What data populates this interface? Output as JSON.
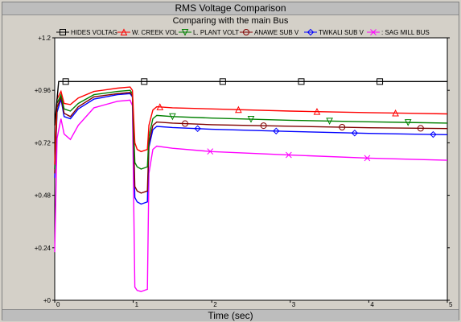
{
  "chart_data": {
    "type": "line",
    "title": "RMS Voltage Comparison",
    "subtitle": "Comparing with the main Bus",
    "xlabel": "Time (sec)",
    "ylabel": "",
    "xlim": [
      0,
      5
    ],
    "ylim": [
      0,
      1.2
    ],
    "x_ticks": [
      0,
      1,
      2,
      3,
      4,
      5
    ],
    "x_tick_labels": [
      "0",
      "1",
      "2",
      "3",
      "4",
      "5"
    ],
    "y_ticks": [
      0,
      0.24,
      0.48,
      0.72,
      0.96,
      1.2
    ],
    "y_tick_labels": [
      "+0",
      "+0.24",
      "+0.48",
      "+0.72",
      "+0.96",
      "+1.2"
    ],
    "grid": false,
    "legend_position": "top",
    "series": [
      {
        "name": "HIDES VOLTAG",
        "color": "#000000",
        "marker": "square",
        "x": [
          0,
          0.05,
          0.1,
          1.0,
          1.2,
          5.0
        ],
        "y": [
          0.8,
          1.0,
          1.0,
          1.0,
          1.0,
          1.0
        ],
        "marker_x": [
          0.14,
          1.14,
          2.14,
          3.14,
          4.14
        ]
      },
      {
        "name": "W. CREEK VOL",
        "color": "#ff0000",
        "marker": "triangle-up",
        "x": [
          0,
          0.03,
          0.08,
          0.12,
          0.2,
          0.3,
          0.5,
          0.8,
          0.96,
          0.99,
          1.02,
          1.05,
          1.1,
          1.18,
          1.2,
          1.25,
          1.3,
          1.5,
          2.0,
          3.0,
          4.0,
          5.0
        ],
        "y": [
          0.62,
          0.92,
          0.955,
          0.9,
          0.895,
          0.925,
          0.955,
          0.97,
          0.975,
          0.96,
          0.72,
          0.69,
          0.68,
          0.69,
          0.8,
          0.87,
          0.885,
          0.88,
          0.875,
          0.865,
          0.858,
          0.852
        ],
        "marker_x": [
          1.34,
          2.34,
          3.34,
          4.34
        ]
      },
      {
        "name": "L. PLANT VOLT",
        "color": "#008000",
        "marker": "triangle-down",
        "x": [
          0,
          0.03,
          0.08,
          0.12,
          0.2,
          0.3,
          0.5,
          0.8,
          0.96,
          0.99,
          1.02,
          1.05,
          1.1,
          1.18,
          1.2,
          1.25,
          1.3,
          1.5,
          2.0,
          3.0,
          4.0,
          5.0
        ],
        "y": [
          0.6,
          0.9,
          0.94,
          0.875,
          0.865,
          0.9,
          0.94,
          0.955,
          0.96,
          0.945,
          0.63,
          0.61,
          0.6,
          0.61,
          0.75,
          0.83,
          0.845,
          0.84,
          0.833,
          0.823,
          0.816,
          0.81
        ],
        "marker_x": [
          1.5,
          2.5,
          3.5,
          4.5
        ]
      },
      {
        "name": "ANAWE SUB",
        "color": "#800000",
        "marker": "circle",
        "x": [
          0,
          0.03,
          0.08,
          0.12,
          0.2,
          0.3,
          0.5,
          0.8,
          0.96,
          0.99,
          1.02,
          1.05,
          1.1,
          1.18,
          1.2,
          1.25,
          1.3,
          1.5,
          2.0,
          3.0,
          4.0,
          5.0
        ],
        "y": [
          0.58,
          0.88,
          0.93,
          0.855,
          0.84,
          0.885,
          0.93,
          0.945,
          0.95,
          0.935,
          0.52,
          0.5,
          0.49,
          0.5,
          0.72,
          0.8,
          0.815,
          0.81,
          0.803,
          0.796,
          0.789,
          0.785
        ],
        "marker_x": [
          1.66,
          2.66,
          3.66,
          4.66
        ]
      },
      {
        "name": "TWKALI SUB",
        "color": "#0000ff",
        "marker": "diamond",
        "x": [
          0,
          0.03,
          0.08,
          0.12,
          0.2,
          0.3,
          0.5,
          0.8,
          0.96,
          0.99,
          1.02,
          1.05,
          1.1,
          1.18,
          1.2,
          1.25,
          1.3,
          1.5,
          2.0,
          3.0,
          4.0,
          5.0
        ],
        "y": [
          0.56,
          0.86,
          0.92,
          0.84,
          0.83,
          0.875,
          0.92,
          0.94,
          0.945,
          0.93,
          0.47,
          0.45,
          0.44,
          0.45,
          0.7,
          0.78,
          0.795,
          0.79,
          0.782,
          0.772,
          0.763,
          0.757
        ],
        "marker_x": [
          1.82,
          2.82,
          3.82,
          4.82
        ]
      },
      {
        "name": "SAG MILL BUS",
        "color": "#ff00ff",
        "marker": "x",
        "x": [
          0,
          0.03,
          0.08,
          0.12,
          0.2,
          0.3,
          0.5,
          0.8,
          0.96,
          0.99,
          1.02,
          1.05,
          1.1,
          1.18,
          1.2,
          1.25,
          1.3,
          1.5,
          2.0,
          3.0,
          4.0,
          5.0
        ],
        "y": [
          0.22,
          0.74,
          0.83,
          0.76,
          0.735,
          0.8,
          0.88,
          0.91,
          0.915,
          0.89,
          0.06,
          0.045,
          0.04,
          0.05,
          0.58,
          0.69,
          0.705,
          0.695,
          0.68,
          0.664,
          0.65,
          0.64
        ],
        "marker_x": [
          1.98,
          2.98,
          3.98
        ]
      }
    ],
    "legend_labels": [
      "HIDES VOLTAG",
      "W. CREEK VOL",
      "L. PLANT VOLT",
      "ANAWE SUB  V",
      "TWKALI SUB  V",
      ": SAG MILL BUS"
    ]
  }
}
